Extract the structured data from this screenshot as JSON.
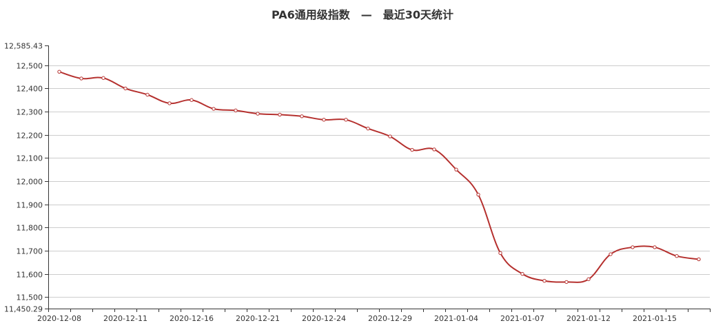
{
  "chart_data": {
    "type": "line",
    "title": "PA6通用级指数　—　最近30天统计",
    "x_tick_labels": [
      "2020-12-08",
      "2020-12-11",
      "2020-12-16",
      "2020-12-21",
      "2020-12-24",
      "2020-12-29",
      "2021-01-04",
      "2021-01-07",
      "2021-01-12",
      "2021-01-15"
    ],
    "y_tick_labels": [
      "12,585.43",
      "12,500",
      "12,400",
      "12,300",
      "12,200",
      "12,100",
      "12,000",
      "11,900",
      "11,800",
      "11,700",
      "11,600",
      "11,500",
      "11,450.29"
    ],
    "ylim": [
      11450.29,
      12585.43
    ],
    "y_ticks": [
      12585.43,
      12500,
      12400,
      12300,
      12200,
      12100,
      12000,
      11900,
      11800,
      11700,
      11600,
      11500,
      11450.29
    ],
    "grid": true,
    "colors": {
      "line": "#b5302e",
      "grid": "#cccccc",
      "axis": "#333333"
    },
    "series": [
      {
        "values": [
          12472,
          12443,
          12445,
          12400,
          12373,
          12336,
          12350,
          12312,
          12305,
          12291,
          12287,
          12280,
          12265,
          12265,
          12227,
          12193,
          12135,
          12137,
          12050,
          11942,
          11690,
          11600,
          11570,
          11565,
          11577,
          11685,
          11715,
          11715,
          11677,
          11663
        ]
      }
    ]
  }
}
